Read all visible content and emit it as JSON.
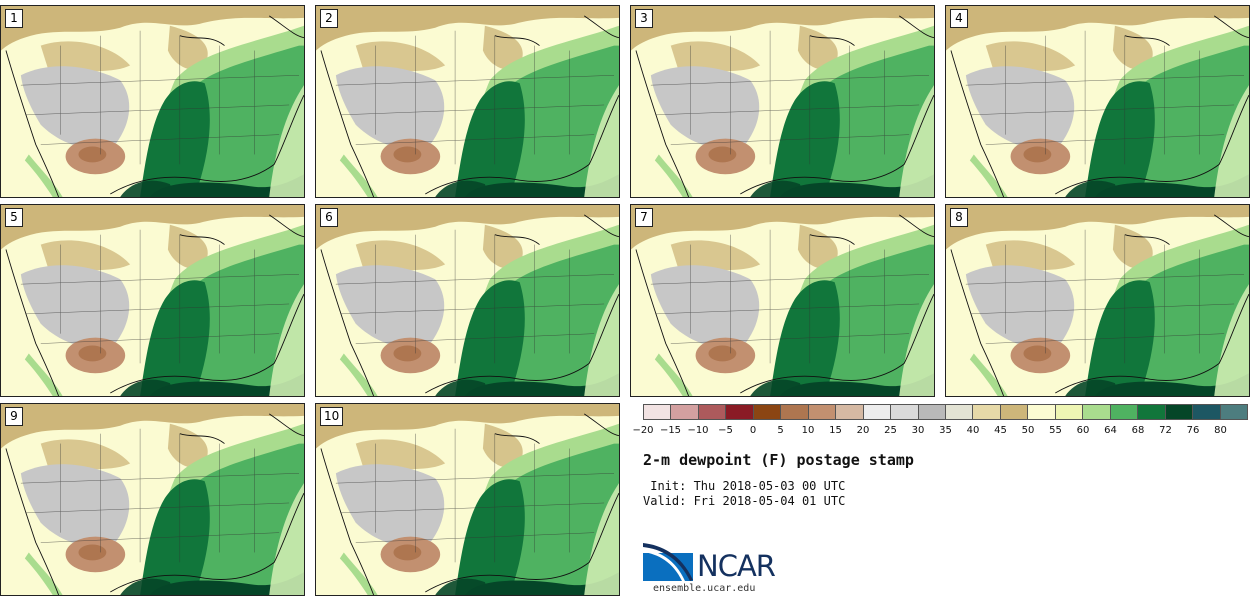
{
  "product": {
    "title": "2-m dewpoint (F) postage stamp",
    "init": " Init: Thu 2018-05-03 00 UTC",
    "valid": "Valid: Fri 2018-05-04 01 UTC"
  },
  "members": [
    {
      "label": "1"
    },
    {
      "label": "2"
    },
    {
      "label": "3"
    },
    {
      "label": "4"
    },
    {
      "label": "5"
    },
    {
      "label": "6"
    },
    {
      "label": "7"
    },
    {
      "label": "8"
    },
    {
      "label": "9"
    },
    {
      "label": "10"
    }
  ],
  "colorbar": {
    "ticks": [
      "−20",
      "−15",
      "−10",
      "−5",
      "0",
      "5",
      "10",
      "15",
      "20",
      "25",
      "30",
      "35",
      "40",
      "45",
      "50",
      "55",
      "60",
      "64",
      "68",
      "72",
      "76",
      "80"
    ],
    "colors": [
      "#f2e3e3",
      "#d3a0a0",
      "#ad5a5c",
      "#8a1b25",
      "#8b4513",
      "#ae7650",
      "#c29070",
      "#d5b9a3",
      "#ededed",
      "#dadada",
      "#b9b9b9",
      "#e3e3d4",
      "#e6d9a8",
      "#cdb67a",
      "#fbfbd2",
      "#eef5b4",
      "#a9dc8e",
      "#4fb261",
      "#11763b",
      "#054628",
      "#1d5763",
      "#4d7d7f"
    ]
  },
  "logo": {
    "wordmark": "NCAR",
    "url": "ensemble.ucar.edu"
  },
  "style": {
    "land_light": "#fbfbd2",
    "tan": "#cdb67a",
    "gray": "#c7c7c7",
    "brown": "#c29070",
    "green_light": "#a9dc8e",
    "green_mid": "#4fb261",
    "green_dark": "#11763b",
    "green_deep": "#054628",
    "ncar_blue": "#14315f"
  }
}
